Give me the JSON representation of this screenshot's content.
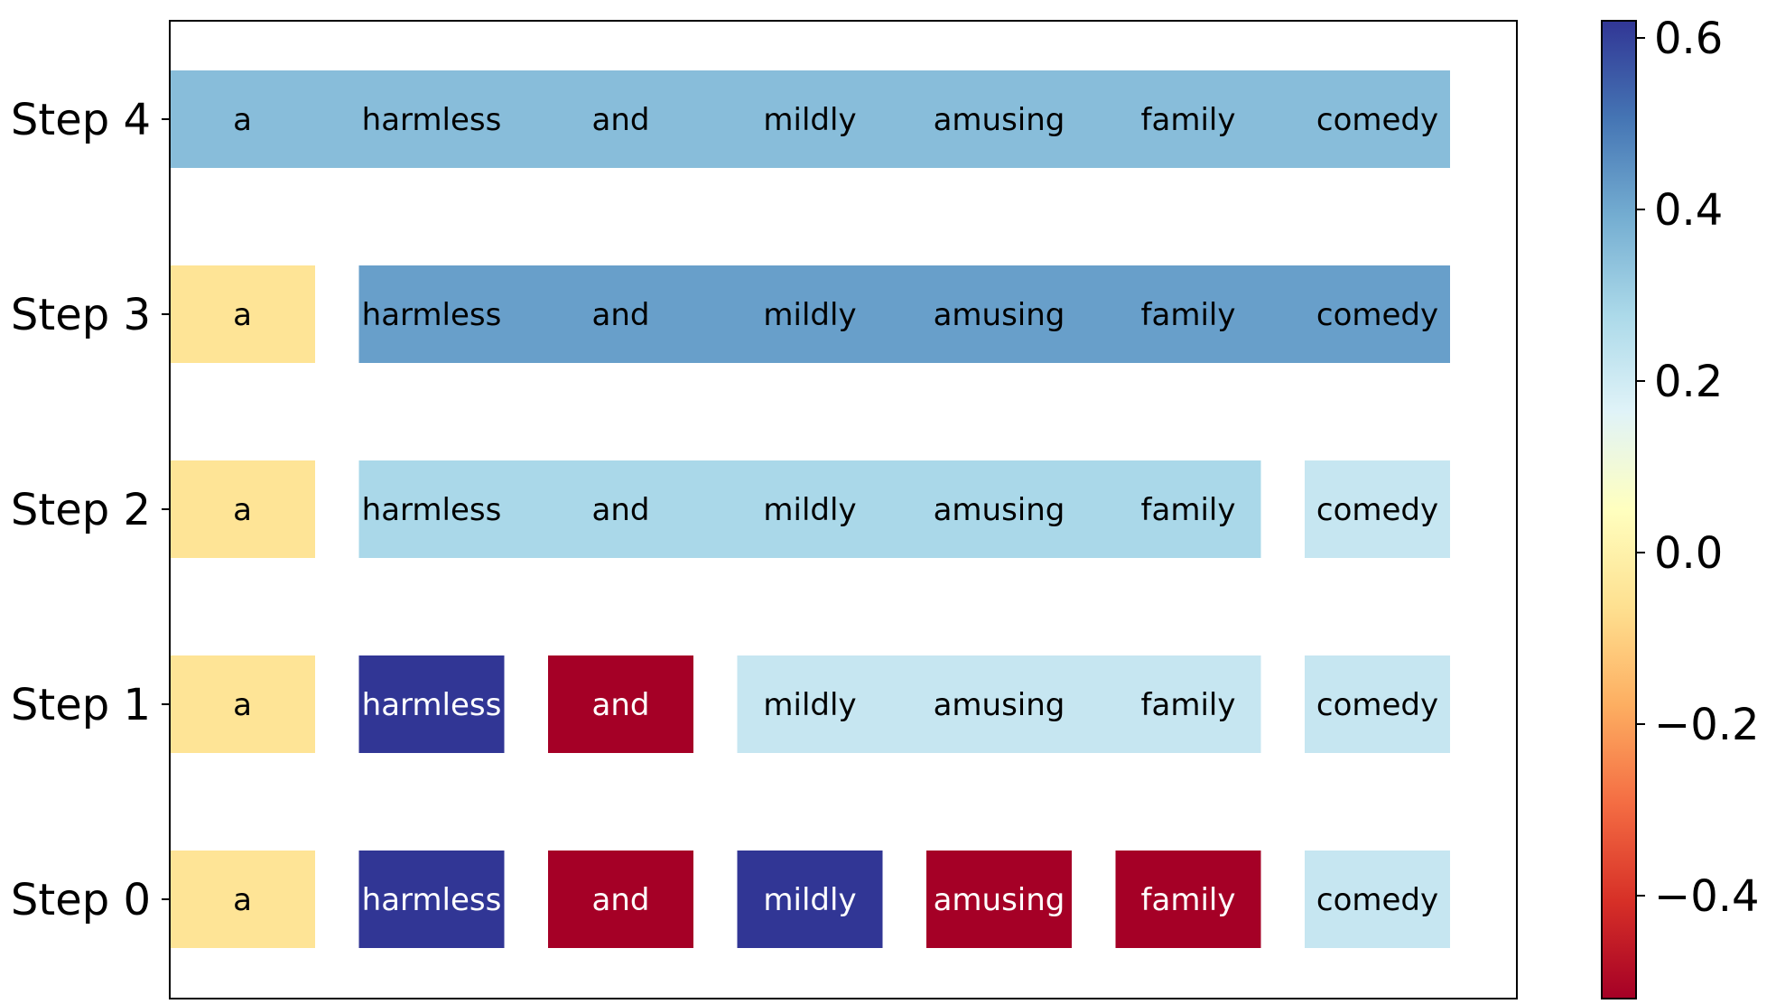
{
  "chart_data": {
    "type": "heatmap",
    "title": "",
    "xlabel": "",
    "ylabel": "",
    "tokens": [
      "a",
      "harmless",
      "and",
      "mildly",
      "amusing",
      "family",
      "comedy"
    ],
    "steps": [
      {
        "label": "Step 4",
        "segments": [
          {
            "tokens": [
              "a",
              "harmless",
              "and",
              "mildly",
              "amusing",
              "family",
              "comedy"
            ],
            "value": 0.35
          }
        ]
      },
      {
        "label": "Step 3",
        "segments": [
          {
            "tokens": [
              "a"
            ],
            "value": -0.05
          },
          {
            "tokens": [
              "harmless",
              "and",
              "mildly",
              "amusing",
              "family",
              "comedy"
            ],
            "value": 0.42
          }
        ]
      },
      {
        "label": "Step 2",
        "segments": [
          {
            "tokens": [
              "a"
            ],
            "value": -0.05
          },
          {
            "tokens": [
              "harmless",
              "and",
              "mildly",
              "amusing",
              "family"
            ],
            "value": 0.28
          },
          {
            "tokens": [
              "comedy"
            ],
            "value": 0.22
          }
        ]
      },
      {
        "label": "Step 1",
        "segments": [
          {
            "tokens": [
              "a"
            ],
            "value": -0.05
          },
          {
            "tokens": [
              "harmless"
            ],
            "value": 0.62
          },
          {
            "tokens": [
              "and"
            ],
            "value": -0.52
          },
          {
            "tokens": [
              "mildly",
              "amusing",
              "family"
            ],
            "value": 0.22
          },
          {
            "tokens": [
              "comedy"
            ],
            "value": 0.22
          }
        ]
      },
      {
        "label": "Step 0",
        "segments": [
          {
            "tokens": [
              "a"
            ],
            "value": -0.05
          },
          {
            "tokens": [
              "harmless"
            ],
            "value": 0.62
          },
          {
            "tokens": [
              "and"
            ],
            "value": -0.52
          },
          {
            "tokens": [
              "mildly"
            ],
            "value": 0.62
          },
          {
            "tokens": [
              "amusing"
            ],
            "value": -0.52
          },
          {
            "tokens": [
              "family"
            ],
            "value": -0.52
          },
          {
            "tokens": [
              "comedy"
            ],
            "value": 0.22
          }
        ]
      }
    ],
    "colorbar": {
      "colormap": "RdYlBu",
      "range": [
        -0.52,
        0.62
      ],
      "ticks": [
        0.6,
        0.4,
        0.2,
        0.0,
        -0.2,
        -0.4
      ],
      "tick_labels": [
        "0.6",
        "0.4",
        "0.2",
        "0.0",
        "−0.2",
        "−0.4"
      ]
    },
    "grid": false,
    "legend": "colorbar-right"
  }
}
